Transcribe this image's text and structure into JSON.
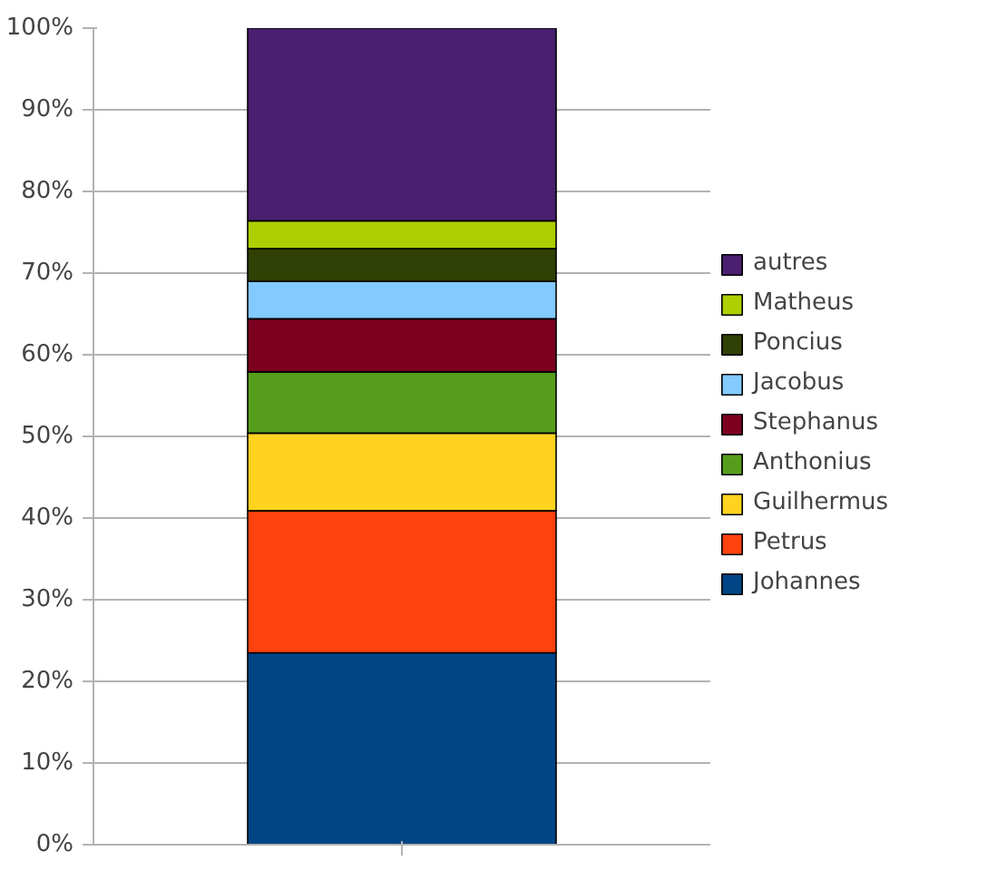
{
  "chart_data": {
    "type": "bar",
    "stacked": true,
    "categories": [
      null
    ],
    "series": [
      {
        "name": "Johannes",
        "color": "#004586",
        "values": [
          23.5
        ]
      },
      {
        "name": "Petrus",
        "color": "#ff420e",
        "values": [
          17.4
        ]
      },
      {
        "name": "Guilhermus",
        "color": "#ffd320",
        "values": [
          9.5
        ]
      },
      {
        "name": "Anthonius",
        "color": "#579d1c",
        "values": [
          7.5
        ]
      },
      {
        "name": "Stephanus",
        "color": "#7e0021",
        "values": [
          6.5
        ]
      },
      {
        "name": "Jacobus",
        "color": "#83caff",
        "values": [
          4.6
        ]
      },
      {
        "name": "Poncius",
        "color": "#314004",
        "values": [
          4.0
        ]
      },
      {
        "name": "Matheus",
        "color": "#aecf00",
        "values": [
          3.4
        ]
      },
      {
        "name": "autres",
        "color": "#4b1f6f",
        "values": [
          23.6
        ]
      }
    ],
    "ylim": [
      0,
      100
    ],
    "yticks": [
      {
        "value": 0,
        "label": "0%"
      },
      {
        "value": 10,
        "label": "10%"
      },
      {
        "value": 20,
        "label": "20%"
      },
      {
        "value": 30,
        "label": "30%"
      },
      {
        "value": 40,
        "label": "40%"
      },
      {
        "value": 50,
        "label": "50%"
      },
      {
        "value": 60,
        "label": "60%"
      },
      {
        "value": 70,
        "label": "70%"
      },
      {
        "value": 80,
        "label": "80%"
      },
      {
        "value": 90,
        "label": "90%"
      },
      {
        "value": 100,
        "label": "100%"
      }
    ],
    "grid": "y",
    "legend": "right"
  }
}
